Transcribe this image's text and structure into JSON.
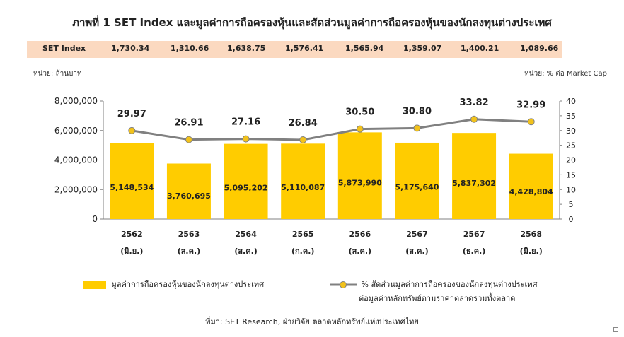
{
  "title": "ภาพที่ 1 SET Index และมูลค่าการถือครองหุ้นและสัดส่วนมูลค่าการถือครองหุ้นของนักลงทุนต่างประเทศ",
  "set_index": {
    "label": "SET Index",
    "values": [
      "1,730.34",
      "1,310.66",
      "1,638.75",
      "1,576.41",
      "1,565.94",
      "1,359.07",
      "1,400.21",
      "1,089.66"
    ]
  },
  "unit_left": "หน่วย: ล้านบาท",
  "unit_right": "หน่วย: % ต่อ Market Cap",
  "colors": {
    "bar": "#ffcc00",
    "line": "#808080",
    "marker": "#f2c21b",
    "band": "#fbd9c0"
  },
  "chart_data": {
    "type": "bar",
    "categories": [
      "2562",
      "2563",
      "2564",
      "2565",
      "2566",
      "2567",
      "2567",
      "2568"
    ],
    "sublabels": [
      "(มิ.ย.)",
      "(ส.ค.)",
      "(ส.ค.)",
      "(ก.ค.)",
      "(ส.ค.)",
      "(ส.ค.)",
      "(ธ.ค.)",
      "(มิ.ย.)"
    ],
    "series": [
      {
        "name": "มูลค่าการถือครองหุ้นของนักลงทุนต่างประเทศ",
        "type": "bar",
        "axis": "left",
        "values": [
          5148534,
          3760695,
          5095202,
          5110087,
          5873990,
          5175640,
          5837302,
          4428804
        ],
        "labels": [
          "5,148,534",
          "3,760,695",
          "5,095,202",
          "5,110,087",
          "5,873,990",
          "5,175,640",
          "5,837,302",
          "4,428,804"
        ]
      },
      {
        "name": "% สัดส่วนมูลค่าการถือครองของนักลงทุนต่างประเทศ ต่อมูลค่าหลักทรัพย์ตามราคาตลาดรวมทั้งตลาด",
        "type": "line",
        "axis": "right",
        "values": [
          29.97,
          26.91,
          27.16,
          26.84,
          30.5,
          30.8,
          33.82,
          32.99
        ],
        "labels": [
          "29.97",
          "26.91",
          "27.16",
          "26.84",
          "30.50",
          "30.80",
          "33.82",
          "32.99"
        ]
      }
    ],
    "y_left": {
      "ylim": [
        0,
        8000000
      ],
      "ticks": [
        0,
        2000000,
        4000000,
        6000000,
        8000000
      ],
      "tick_labels": [
        "0",
        "2,000,000",
        "4,000,000",
        "6,000,000",
        "8,000,000"
      ]
    },
    "y_right": {
      "ylim": [
        0,
        40
      ],
      "ticks": [
        0,
        5,
        10,
        15,
        20,
        25,
        30,
        35,
        40
      ],
      "tick_labels": [
        "0",
        "5",
        "10",
        "15",
        "20",
        "25",
        "30",
        "35",
        "40"
      ]
    },
    "grid": false,
    "legend_position": "bottom"
  },
  "legend": {
    "bar_label": "มูลค่าการถือครองหุ้นของนักลงทุนต่างประเทศ",
    "line_label_1": "% สัดส่วนมูลค่าการถือครองของนักลงทุนต่างประเทศ",
    "line_label_2": "ต่อมูลค่าหลักทรัพย์ตามราคาตลาดรวมทั้งตลาด"
  },
  "source": "ที่มา: SET Research, ฝ่ายวิจัย ตลาดหลักทรัพย์แห่งประเทศไทย"
}
